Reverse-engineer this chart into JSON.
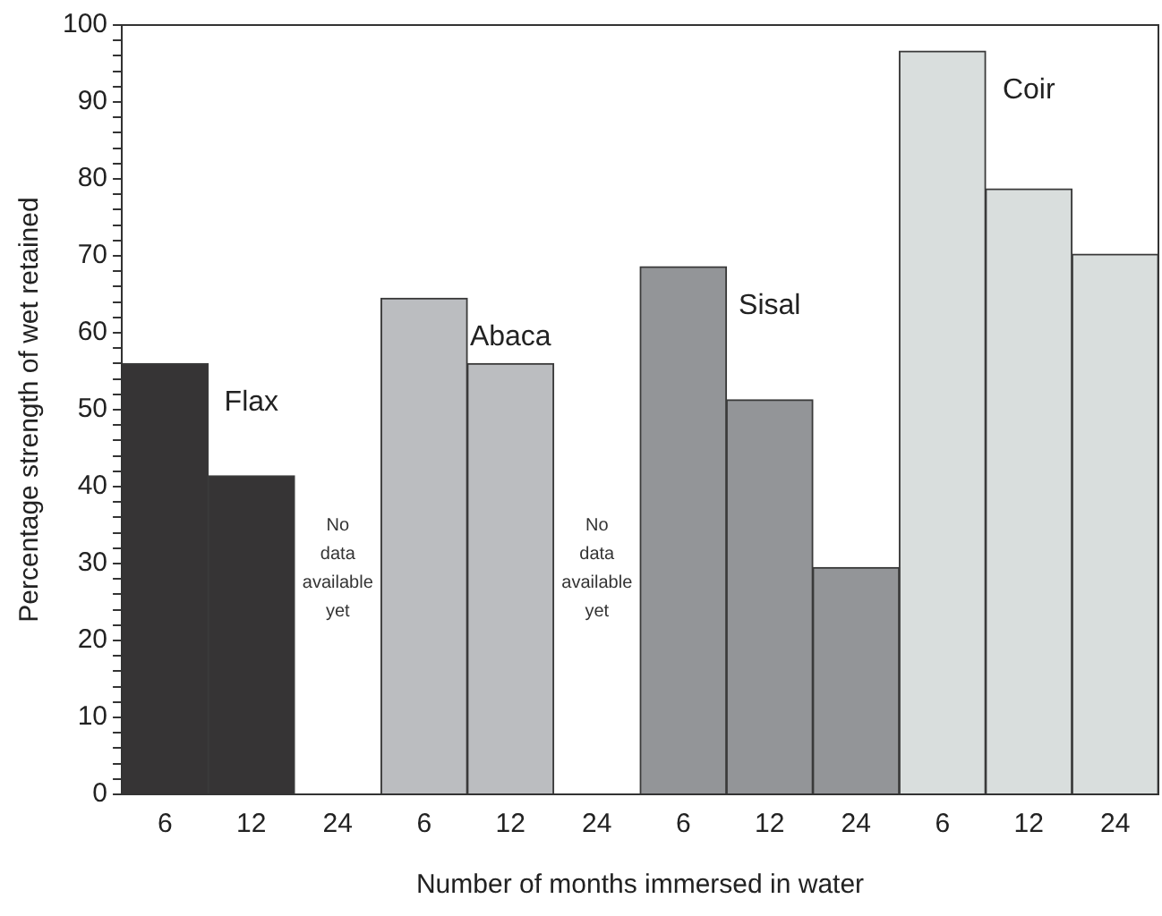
{
  "chart_data": {
    "type": "bar",
    "xlabel": "Number of months immersed in water",
    "ylabel": "Percentage strength of wet retained",
    "categories": [
      "6",
      "12",
      "24",
      "6",
      "12",
      "24",
      "6",
      "12",
      "24",
      "6",
      "12",
      "24"
    ],
    "series": [
      {
        "name": "Flax",
        "color": "#363435",
        "values": [
          56,
          41.4,
          null,
          null,
          null,
          null,
          null,
          null,
          null,
          null,
          null,
          null
        ]
      },
      {
        "name": "Abaca",
        "color": "#bbbdc0",
        "values": [
          null,
          null,
          null,
          64.5,
          56,
          null,
          null,
          null,
          null,
          null,
          null,
          null
        ]
      },
      {
        "name": "Sisal",
        "color": "#939598",
        "values": [
          null,
          null,
          null,
          null,
          null,
          null,
          68.6,
          51.3,
          29.5,
          null,
          null,
          null
        ]
      },
      {
        "name": "Coir",
        "color": "#d9dedd",
        "values": [
          null,
          null,
          null,
          null,
          null,
          null,
          null,
          null,
          null,
          96.6,
          78.7,
          70.2
        ]
      }
    ],
    "ylim": [
      0,
      100
    ],
    "yticks": [
      0,
      {
        "value": 2,
        "label": null
      },
      {
        "value": 4,
        "label": null
      },
      {
        "value": 6,
        "label": null
      },
      {
        "value": 8,
        "label": null
      },
      10,
      {
        "value": 12,
        "label": null
      },
      {
        "value": 14,
        "label": null
      },
      {
        "value": 16,
        "label": null
      },
      {
        "value": 18,
        "label": null
      },
      20,
      {
        "value": 22,
        "label": null
      },
      {
        "value": 24,
        "label": null
      },
      {
        "value": 26,
        "label": null
      },
      {
        "value": 28,
        "label": null
      },
      30,
      {
        "value": 32,
        "label": null
      },
      {
        "value": 34,
        "label": null
      },
      {
        "value": 36,
        "label": null
      },
      {
        "value": 38,
        "label": null
      },
      40,
      {
        "value": 42,
        "label": null
      },
      {
        "value": 44,
        "label": null
      },
      {
        "value": 46,
        "label": null
      },
      {
        "value": 48,
        "label": null
      },
      50,
      {
        "value": 52,
        "label": null
      },
      {
        "value": 54,
        "label": null
      },
      {
        "value": 56,
        "label": null
      },
      {
        "value": 58,
        "label": null
      },
      60,
      {
        "value": 62,
        "label": null
      },
      {
        "value": 64,
        "label": null
      },
      {
        "value": 66,
        "label": null
      },
      {
        "value": 68,
        "label": null
      },
      70,
      {
        "value": 72,
        "label": null
      },
      {
        "value": 74,
        "label": null
      },
      {
        "value": 76,
        "label": null
      },
      {
        "value": 78,
        "label": null
      },
      80,
      {
        "value": 82,
        "label": null
      },
      {
        "value": 84,
        "label": null
      },
      {
        "value": 86,
        "label": null
      },
      {
        "value": 88,
        "label": null
      },
      90,
      {
        "value": 92,
        "label": null
      },
      {
        "value": 94,
        "label": null
      },
      {
        "value": 96,
        "label": null
      },
      {
        "value": 98,
        "label": null
      },
      100
    ],
    "annotations": [
      "No data available yet",
      "No data available yet"
    ],
    "grid": false,
    "legend": false
  }
}
